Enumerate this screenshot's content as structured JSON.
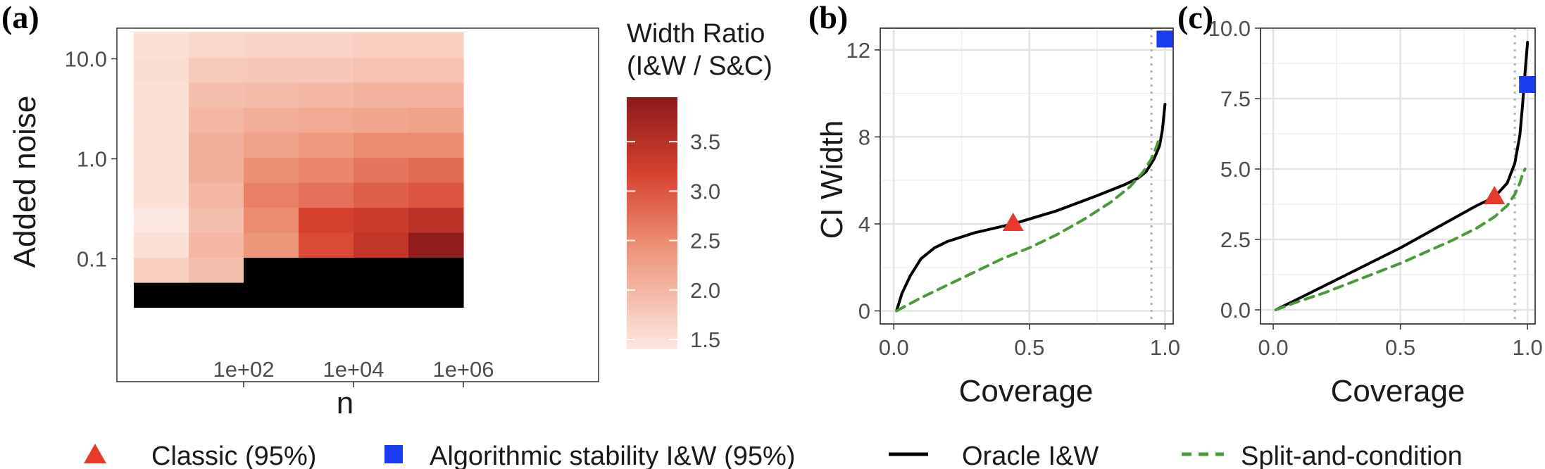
{
  "panels": {
    "a": {
      "label": "(a)"
    },
    "b": {
      "label": "(b)"
    },
    "c": {
      "label": "(c)"
    }
  },
  "legend": {
    "classic": "Classic (95%)",
    "stability": "Algorithmic stability I&W  (95%)",
    "oracle": "Oracle I&W",
    "split": "Split-and-condition"
  },
  "colors": {
    "classic": "#e8392d",
    "stability": "#1a3cf0",
    "oracle": "#000000",
    "split": "#4b9a3a",
    "heat_low": "#fce8e0",
    "heat_high": "#8b1a1a",
    "missing": "#000000"
  },
  "chart_data": [
    {
      "type": "heatmap",
      "panel": "a",
      "xlabel": "n",
      "ylabel": "Added noise",
      "x_ticks": [
        "1e+02",
        "1e+04",
        "1e+06"
      ],
      "y_ticks": [
        "0.1",
        "1.0",
        "10.0"
      ],
      "legend_title": [
        "Width Ratio",
        "(I&W / S&C)"
      ],
      "colorbar_ticks": [
        "1.5",
        "2.0",
        "2.5",
        "3.0",
        "3.5"
      ],
      "colorbar_range": [
        1.4,
        3.95
      ],
      "n_log10": [
        1,
        2,
        3,
        4,
        5,
        6
      ],
      "noise_log10": [
        -1.25,
        -1.0,
        -0.75,
        -0.5,
        -0.25,
        0.0,
        0.25,
        0.5,
        0.75,
        1.0,
        1.25
      ],
      "values": [
        [
          null,
          null,
          null,
          null,
          null,
          null
        ],
        [
          1.7,
          1.9,
          null,
          null,
          null,
          null
        ],
        [
          1.5,
          2.0,
          2.4,
          3.1,
          3.4,
          3.9
        ],
        [
          1.4,
          1.9,
          2.5,
          3.2,
          3.3,
          3.45
        ],
        [
          1.5,
          2.0,
          2.6,
          2.75,
          2.9,
          3.0
        ],
        [
          1.5,
          2.1,
          2.45,
          2.55,
          2.7,
          2.8
        ],
        [
          1.5,
          2.1,
          2.25,
          2.35,
          2.5,
          2.5
        ],
        [
          1.5,
          2.0,
          2.1,
          2.15,
          2.2,
          2.25
        ],
        [
          1.5,
          1.9,
          1.95,
          2.0,
          2.05,
          2.05
        ],
        [
          1.55,
          1.75,
          1.8,
          1.8,
          1.85,
          1.85
        ],
        [
          1.5,
          1.6,
          1.65,
          1.65,
          1.7,
          1.7
        ]
      ]
    },
    {
      "type": "line",
      "panel": "b",
      "xlabel": "Coverage",
      "ylabel": "CI Width",
      "xlim": [
        -0.05,
        1.03
      ],
      "ylim": [
        -0.6,
        13.0
      ],
      "x_ticks": [
        "0.0",
        "0.5",
        "1.0"
      ],
      "x_tick_values": [
        0,
        0.5,
        1.0
      ],
      "y_ticks": [
        "0",
        "4",
        "8",
        "12"
      ],
      "y_tick_values": [
        0,
        4,
        8,
        12
      ],
      "vline": 0.95,
      "series": [
        {
          "name": "Oracle I&W",
          "x": [
            0.01,
            0.03,
            0.06,
            0.1,
            0.15,
            0.2,
            0.3,
            0.44,
            0.6,
            0.75,
            0.85,
            0.9,
            0.93,
            0.96,
            0.98,
            0.99,
            1.0
          ],
          "y": [
            0.0,
            0.8,
            1.6,
            2.4,
            2.9,
            3.2,
            3.6,
            4.0,
            4.6,
            5.3,
            5.8,
            6.1,
            6.4,
            7.0,
            7.6,
            8.3,
            9.5
          ]
        },
        {
          "name": "Split-and-condition",
          "x": [
            0.01,
            0.1,
            0.2,
            0.3,
            0.4,
            0.5,
            0.6,
            0.7,
            0.8,
            0.87,
            0.92,
            0.95,
            0.97,
            0.98
          ],
          "y": [
            0.0,
            0.6,
            1.2,
            1.8,
            2.4,
            2.9,
            3.5,
            4.2,
            5.0,
            5.7,
            6.4,
            7.0,
            7.6,
            8.0
          ]
        }
      ],
      "points": [
        {
          "name": "Classic (95%)",
          "x": 0.44,
          "y": 4.0
        },
        {
          "name": "Algorithmic stability I&W  (95%)",
          "x": 1.0,
          "y": 12.5
        }
      ]
    },
    {
      "type": "line",
      "panel": "c",
      "xlabel": "Coverage",
      "ylabel": "",
      "xlim": [
        -0.05,
        1.03
      ],
      "ylim": [
        -0.5,
        10.0
      ],
      "x_ticks": [
        "0.0",
        "0.5",
        "1.0"
      ],
      "x_tick_values": [
        0,
        0.5,
        1.0
      ],
      "y_ticks": [
        "0.0",
        "2.5",
        "5.0",
        "7.5",
        "10.0"
      ],
      "y_tick_values": [
        0,
        2.5,
        5.0,
        7.5,
        10.0
      ],
      "vline": 0.95,
      "series": [
        {
          "name": "Oracle I&W",
          "x": [
            0.01,
            0.1,
            0.2,
            0.3,
            0.4,
            0.5,
            0.6,
            0.7,
            0.8,
            0.87,
            0.92,
            0.95,
            0.97,
            0.98,
            0.99,
            1.0
          ],
          "y": [
            0.0,
            0.4,
            0.85,
            1.3,
            1.75,
            2.2,
            2.7,
            3.2,
            3.7,
            4.0,
            4.5,
            5.2,
            6.2,
            7.2,
            8.4,
            9.5
          ]
        },
        {
          "name": "Split-and-condition",
          "x": [
            0.01,
            0.1,
            0.2,
            0.3,
            0.4,
            0.5,
            0.6,
            0.7,
            0.8,
            0.87,
            0.92,
            0.95,
            0.97,
            0.98,
            0.99
          ],
          "y": [
            0.0,
            0.3,
            0.6,
            0.95,
            1.3,
            1.65,
            2.05,
            2.45,
            2.9,
            3.3,
            3.7,
            4.1,
            4.5,
            4.8,
            5.0
          ]
        }
      ],
      "points": [
        {
          "name": "Classic (95%)",
          "x": 0.87,
          "y": 4.0
        },
        {
          "name": "Algorithmic stability I&W  (95%)",
          "x": 1.0,
          "y": 8.0
        }
      ]
    }
  ]
}
